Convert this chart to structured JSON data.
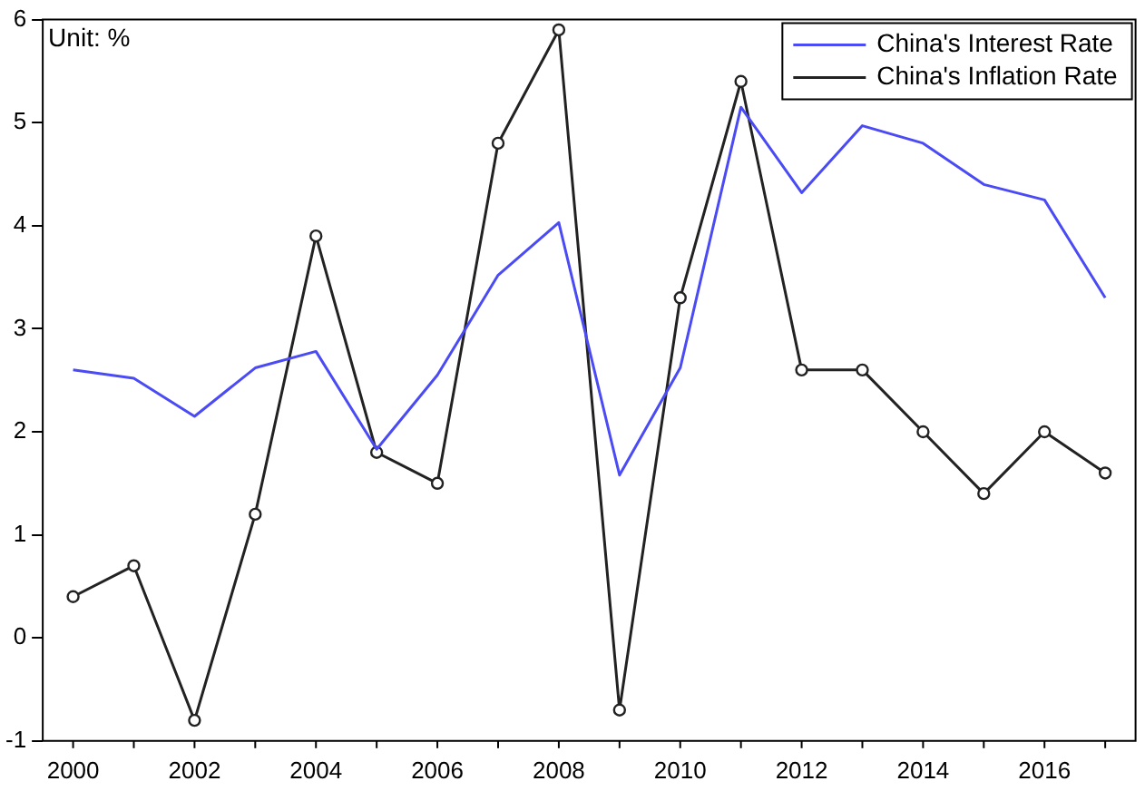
{
  "chart_data": {
    "type": "line",
    "x": [
      2000,
      2001,
      2002,
      2003,
      2004,
      2005,
      2006,
      2007,
      2008,
      2009,
      2010,
      2011,
      2012,
      2013,
      2014,
      2015,
      2016,
      2017
    ],
    "series": [
      {
        "name": "China's Interest Rate",
        "color": "#4b4bf5",
        "marker": "none",
        "values": [
          2.6,
          2.52,
          2.15,
          2.62,
          2.78,
          1.83,
          2.55,
          3.52,
          4.03,
          1.58,
          2.62,
          5.15,
          4.32,
          4.97,
          4.8,
          4.4,
          4.25,
          3.3
        ]
      },
      {
        "name": "China's Inflation Rate",
        "color": "#222222",
        "marker": "circle",
        "values": [
          0.4,
          0.7,
          -0.8,
          1.2,
          3.9,
          1.8,
          1.5,
          4.8,
          5.9,
          -0.7,
          3.3,
          5.4,
          2.6,
          2.6,
          2.0,
          1.4,
          2.0,
          1.6
        ]
      }
    ],
    "xlim": [
      1999.5,
      2017.5
    ],
    "xticks": [
      2000,
      2002,
      2004,
      2006,
      2008,
      2010,
      2012,
      2014,
      2016
    ],
    "ylim": [
      -1,
      6
    ],
    "yticks": [
      -1,
      0,
      1,
      2,
      3,
      4,
      5,
      6
    ],
    "grid": false,
    "legend": "top right",
    "line_style": "solid",
    "annotations": [
      "Unit: %"
    ]
  }
}
